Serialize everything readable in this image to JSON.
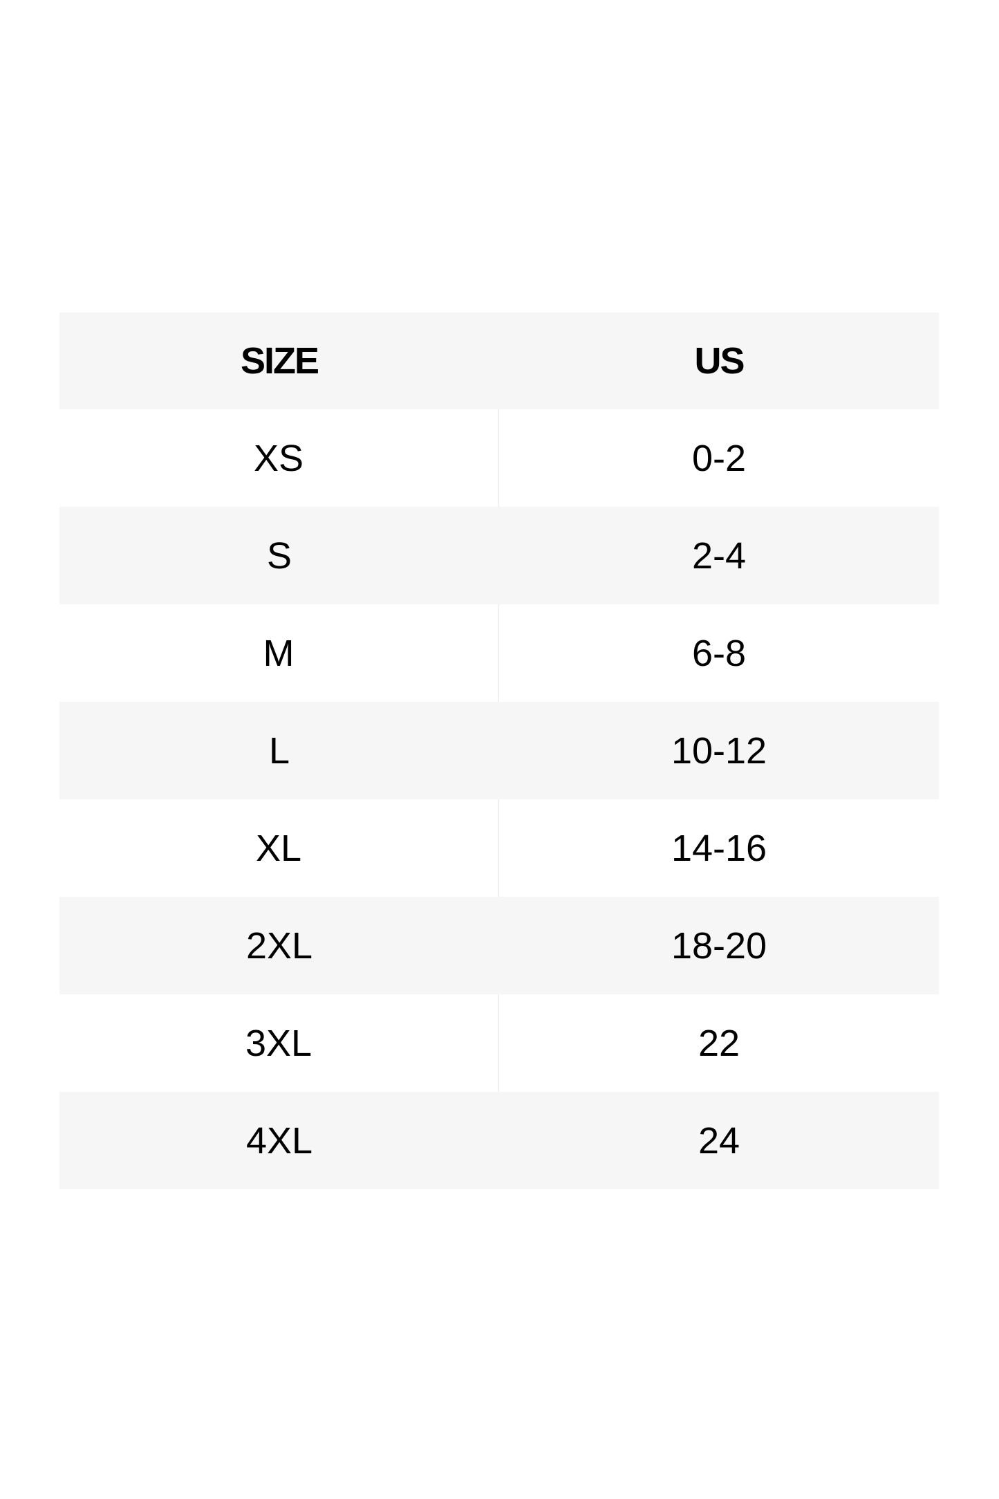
{
  "table": {
    "headers": [
      "SIZE",
      "US"
    ],
    "rows": [
      [
        "XS",
        "0-2"
      ],
      [
        "S",
        "2-4"
      ],
      [
        "M",
        "6-8"
      ],
      [
        "L",
        "10-12"
      ],
      [
        "XL",
        "14-16"
      ],
      [
        "2XL",
        "18-20"
      ],
      [
        "3XL",
        "22"
      ],
      [
        "4XL",
        "24"
      ]
    ]
  },
  "colors": {
    "stripe": "#f6f6f6",
    "text": "#000000"
  }
}
